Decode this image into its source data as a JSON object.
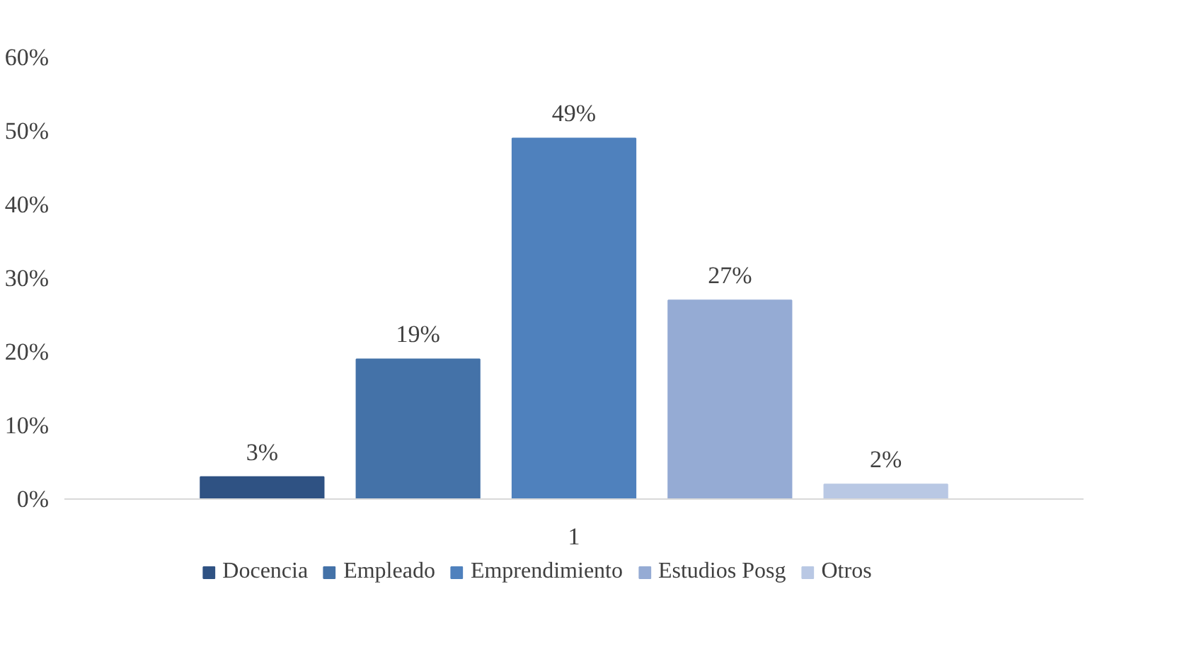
{
  "chart_data": {
    "type": "bar",
    "categories": [
      "1"
    ],
    "series": [
      {
        "name": "Docencia",
        "color": "#2f5283",
        "values": [
          3
        ]
      },
      {
        "name": "Empleado",
        "color": "#4472a8",
        "values": [
          19
        ]
      },
      {
        "name": "Emprendimiento",
        "color": "#4f81bd",
        "values": [
          49
        ]
      },
      {
        "name": "Estudios Posg",
        "color": "#95abd4",
        "values": [
          27
        ]
      },
      {
        "name": "Otros",
        "color": "#b9c8e4",
        "values": [
          2
        ]
      }
    ],
    "value_labels": [
      "3%",
      "19%",
      "49%",
      "27%",
      "2%"
    ],
    "ylim": [
      0,
      60
    ],
    "yticks": [
      {
        "value": 0,
        "label": "0%"
      },
      {
        "value": 10,
        "label": "10%"
      },
      {
        "value": 20,
        "label": "20%"
      },
      {
        "value": 30,
        "label": "30%"
      },
      {
        "value": 40,
        "label": "40%"
      },
      {
        "value": 50,
        "label": "50%"
      },
      {
        "value": 60,
        "label": "60%"
      }
    ],
    "grid": false,
    "legend": "bottom"
  }
}
